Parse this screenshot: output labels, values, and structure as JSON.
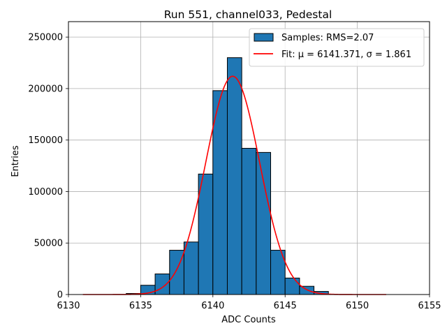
{
  "chart_data": {
    "type": "histogram",
    "title": "Run 551, channel033, Pedestal",
    "xlabel": "ADC Counts",
    "ylabel": "Entries",
    "xlim": [
      6130,
      6155
    ],
    "ylim": [
      0,
      265000
    ],
    "xticks": [
      6130,
      6135,
      6140,
      6145,
      6150,
      6155
    ],
    "yticks": [
      0,
      50000,
      100000,
      150000,
      200000,
      250000
    ],
    "grid": true,
    "legend_position": "top-right",
    "colors": {
      "bars": "#1f77b4",
      "bar_edge": "#000000",
      "fit": "#ff0000",
      "grid": "#b0b0b0"
    },
    "series": [
      {
        "name": "Samples: RMS=2.07",
        "kind": "histogram",
        "bin_width": 1,
        "bins": [
          {
            "x": 6134,
            "y": 1000
          },
          {
            "x": 6135,
            "y": 9000
          },
          {
            "x": 6136,
            "y": 20000
          },
          {
            "x": 6137,
            "y": 43000
          },
          {
            "x": 6138,
            "y": 51000
          },
          {
            "x": 6139,
            "y": 117000
          },
          {
            "x": 6140,
            "y": 198000
          },
          {
            "x": 6141,
            "y": 230000
          },
          {
            "x": 6142,
            "y": 142000
          },
          {
            "x": 6143,
            "y": 138000
          },
          {
            "x": 6144,
            "y": 43000
          },
          {
            "x": 6145,
            "y": 16000
          },
          {
            "x": 6146,
            "y": 8000
          },
          {
            "x": 6147,
            "y": 3000
          }
        ]
      },
      {
        "name": "Fit: μ = 6141.371, σ = 1.861",
        "kind": "gaussian",
        "amplitude": 212000,
        "mu": 6141.371,
        "sigma": 1.861,
        "x_range": [
          6131,
          6152
        ]
      }
    ],
    "legend": [
      {
        "text": "Samples: RMS=2.07"
      },
      {
        "text": "Fit: μ = 6141.371, σ = 1.861"
      }
    ]
  }
}
